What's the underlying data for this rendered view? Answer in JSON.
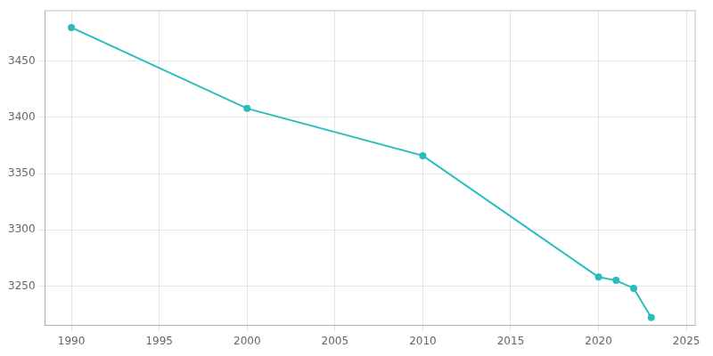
{
  "chart_data": {
    "type": "line",
    "x": [
      1990,
      2000,
      2010,
      2020,
      2021,
      2022,
      2023
    ],
    "values": [
      3480,
      3408,
      3366,
      3258,
      3255,
      3248,
      3222
    ],
    "color": "#2abcbc",
    "marker": "circle",
    "xlim": [
      1988.5,
      2025.5
    ],
    "ylim": [
      3215,
      3495
    ],
    "xticks": [
      1990,
      1995,
      2000,
      2005,
      2010,
      2015,
      2020,
      2025
    ],
    "yticks": [
      3250,
      3300,
      3350,
      3400,
      3450
    ],
    "grid": true
  }
}
